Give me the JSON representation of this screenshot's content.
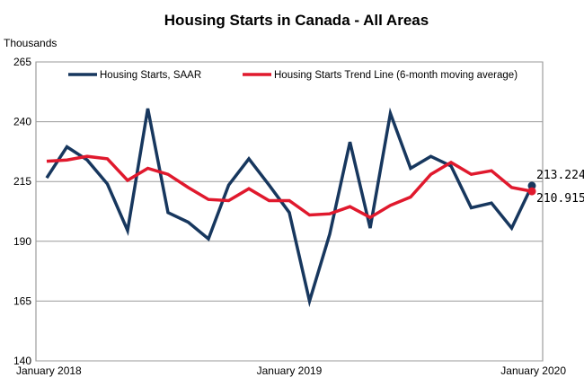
{
  "chart_data": {
    "type": "line",
    "title": "Housing Starts in Canada  - All Areas",
    "ylabel": "Thousands",
    "xlabel": "",
    "ylim": [
      140,
      265
    ],
    "yticks": [
      140,
      165,
      190,
      215,
      240,
      265
    ],
    "x_tick_labels": [
      {
        "index": 0,
        "label": "January 2018"
      },
      {
        "index": 12,
        "label": "January 2019"
      },
      {
        "index": 24,
        "label": "January 2020"
      }
    ],
    "grid": true,
    "legend_position": "top",
    "series": [
      {
        "name": "Housing Starts, SAAR",
        "color": "#17375e",
        "values": [
          216.5,
          229.5,
          224.0,
          214.0,
          194.5,
          245.5,
          202.0,
          198.0,
          191.0,
          213.5,
          224.5,
          213.5,
          202.0,
          165.0,
          193.0,
          231.5,
          195.5,
          243.5,
          220.5,
          225.5,
          221.5,
          204.0,
          206.0,
          195.5,
          213.224
        ]
      },
      {
        "name": "Housing Starts Trend Line (6-month moving average)",
        "color": "#e0192d",
        "values": [
          223.5,
          224.0,
          225.5,
          224.5,
          215.5,
          220.5,
          218.0,
          212.5,
          207.5,
          207.0,
          212.0,
          207.0,
          207.0,
          201.0,
          201.5,
          204.5,
          200.0,
          205.0,
          208.5,
          218.0,
          223.0,
          218.0,
          219.5,
          212.5,
          210.915
        ]
      }
    ],
    "annotations": [
      {
        "label": "213.224",
        "series": 0
      },
      {
        "label": "210.915",
        "series": 1
      }
    ]
  }
}
